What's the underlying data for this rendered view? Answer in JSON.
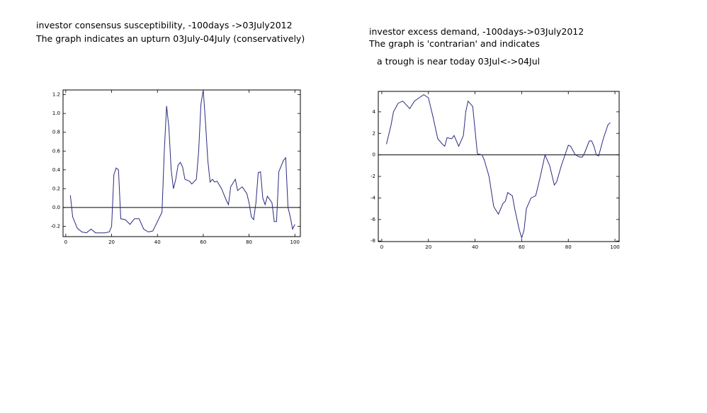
{
  "chart_data": [
    {
      "type": "line",
      "title": "investor consensus susceptibility, -100days ->03July2012",
      "subtitle": "The graph indicates an upturn 03July-04July (conservatively)",
      "color": "#2b2b80",
      "x": [
        2,
        3,
        5,
        7,
        9,
        11,
        13,
        15,
        17,
        19,
        20,
        21,
        22,
        23,
        24,
        26,
        28,
        30,
        32,
        34,
        36,
        38,
        40,
        42,
        43,
        44,
        45,
        46,
        47,
        48,
        49,
        50,
        51,
        52,
        54,
        55,
        57,
        58,
        59,
        60,
        61,
        62,
        63,
        64,
        65,
        66,
        68,
        70,
        71,
        72,
        74,
        75,
        77,
        79,
        80,
        81,
        82,
        83,
        84,
        85,
        86,
        87,
        88,
        90,
        91,
        92,
        93,
        95,
        96,
        97,
        98,
        99,
        100
      ],
      "values": [
        0.13,
        -0.1,
        -0.22,
        -0.26,
        -0.27,
        -0.23,
        -0.27,
        -0.27,
        -0.27,
        -0.26,
        -0.2,
        0.35,
        0.42,
        0.4,
        -0.12,
        -0.13,
        -0.18,
        -0.12,
        -0.12,
        -0.23,
        -0.26,
        -0.25,
        -0.15,
        -0.05,
        0.6,
        1.08,
        0.85,
        0.4,
        0.2,
        0.3,
        0.45,
        0.48,
        0.43,
        0.3,
        0.28,
        0.25,
        0.3,
        0.6,
        1.1,
        1.25,
        0.9,
        0.5,
        0.27,
        0.3,
        0.27,
        0.28,
        0.2,
        0.08,
        0.03,
        0.22,
        0.3,
        0.18,
        0.22,
        0.15,
        0.05,
        -0.1,
        -0.13,
        0.05,
        0.37,
        0.38,
        0.1,
        0.03,
        0.12,
        0.05,
        -0.15,
        -0.15,
        0.38,
        0.5,
        0.53,
        0.0,
        -0.1,
        -0.23,
        -0.18
      ],
      "xlim": [
        -1.2,
        102.4
      ],
      "ylim": [
        -0.31,
        1.25
      ],
      "xticks": [
        0,
        20,
        40,
        60,
        80,
        100
      ],
      "yticks": [
        -0.2,
        {
          "value": 0,
          "label": "0.0"
        },
        0.2,
        0.4,
        0.6,
        0.8,
        {
          "value": 1,
          "label": "1.0"
        },
        1.2
      ]
    },
    {
      "type": "line",
      "title": "investor excess demand, -100days->03July2012",
      "subtitle": "The graph is  'contrarian'  and indicates",
      "annotation": "a trough is near today 03Jul<->04Jul",
      "color": "#2b2b80",
      "x": [
        2,
        4,
        5,
        7,
        9,
        12,
        14,
        16,
        18,
        20,
        22,
        24,
        26,
        27,
        28,
        30,
        31,
        33,
        35,
        36,
        37,
        39,
        41,
        43,
        44,
        46,
        48,
        50,
        52,
        53,
        54,
        56,
        57,
        59,
        60,
        61,
        62,
        64,
        66,
        68,
        69.5,
        70,
        72,
        74,
        75,
        77,
        80,
        81,
        83,
        85,
        86,
        87,
        89,
        90,
        91,
        92,
        93,
        95,
        97,
        98
      ],
      "values": [
        1.0,
        2.8,
        4.0,
        4.8,
        5.0,
        4.3,
        5.0,
        5.3,
        5.6,
        5.3,
        3.5,
        1.5,
        1.0,
        0.8,
        1.6,
        1.5,
        1.8,
        0.8,
        1.8,
        4.0,
        5.0,
        4.5,
        0.1,
        0,
        -0.5,
        -2.0,
        -4.8,
        -5.5,
        -4.5,
        -4.3,
        -3.5,
        -3.8,
        -5.0,
        -7.0,
        -7.7,
        -7.0,
        -5.0,
        -4.0,
        -3.8,
        -2.0,
        -0.5,
        0,
        -1.0,
        -2.8,
        -2.5,
        -1.0,
        0.9,
        0.8,
        0,
        -0.2,
        -0.2,
        0.2,
        1.3,
        1.3,
        0.8,
        0,
        -0.1,
        1.5,
        2.8,
        3.0
      ],
      "xlim": [
        -1.5,
        101.8
      ],
      "ylim": [
        -8.05,
        5.9
      ],
      "xticks": [
        0,
        20,
        40,
        60,
        80,
        100
      ],
      "yticks": [
        -8,
        -6,
        -4,
        -2,
        0,
        2,
        4
      ]
    }
  ]
}
